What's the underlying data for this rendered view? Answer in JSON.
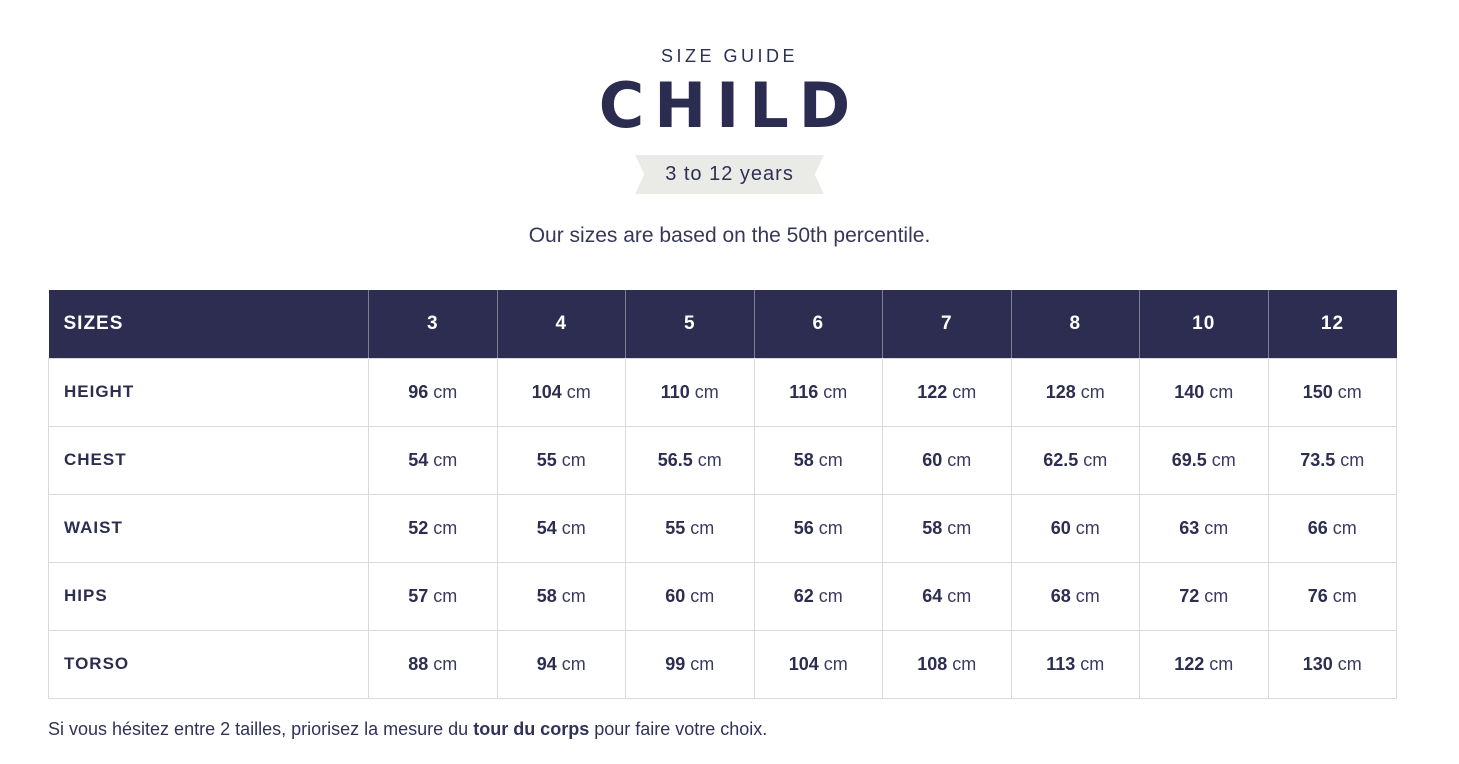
{
  "page": {
    "eyebrow": "SIZE GUIDE",
    "title": "CHILD",
    "age_range": "3 to 12 years",
    "subtitle": "Our sizes are based on the 50th percentile.",
    "footnote_prefix": "Si vous hésitez entre 2 tailles, priorisez la mesure du ",
    "footnote_bold": "tour du corps",
    "footnote_suffix": " pour faire votre choix."
  },
  "colors": {
    "navy": "#2c2d51",
    "header_bg": "#2c2d51",
    "ribbon_bg": "#eaeae7",
    "border": "#d9d9d9",
    "background": "#ffffff"
  },
  "table": {
    "unit": "cm",
    "header": [
      "SIZES",
      "3",
      "4",
      "5",
      "6",
      "7",
      "8",
      "10",
      "12"
    ],
    "rows": [
      {
        "label": "HEIGHT",
        "values": [
          "96",
          "104",
          "110",
          "116",
          "122",
          "128",
          "140",
          "150"
        ]
      },
      {
        "label": "CHEST",
        "values": [
          "54",
          "55",
          "56.5",
          "58",
          "60",
          "62.5",
          "69.5",
          "73.5"
        ]
      },
      {
        "label": "WAIST",
        "values": [
          "52",
          "54",
          "55",
          "56",
          "58",
          "60",
          "63",
          "66"
        ]
      },
      {
        "label": "HIPS",
        "values": [
          "57",
          "58",
          "60",
          "62",
          "64",
          "68",
          "72",
          "76"
        ]
      },
      {
        "label": "TORSO",
        "values": [
          "88",
          "94",
          "99",
          "104",
          "108",
          "113",
          "122",
          "130"
        ]
      }
    ]
  }
}
